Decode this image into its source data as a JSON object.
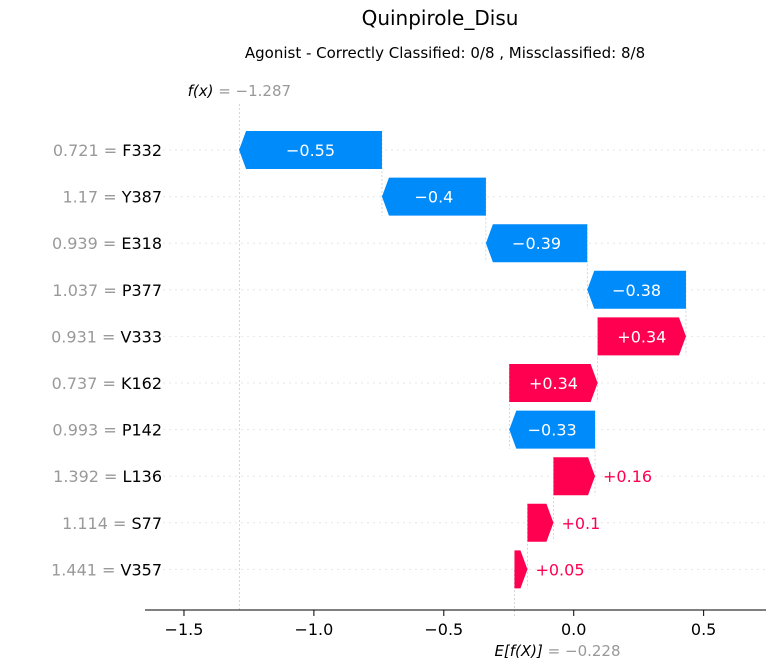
{
  "chart_data": {
    "type": "waterfall",
    "title": "Quinpirole_Disu",
    "subtitle": "Agonist - Correctly Classified: 0/8 , Missclassified: 8/8",
    "fx": {
      "name": "f(x)",
      "eq": " = ",
      "value": "−1.287",
      "num": -1.287
    },
    "base": {
      "name": "E[f(X)]",
      "eq": " = ",
      "value": "−0.228",
      "num": -0.228
    },
    "xlim": [
      -1.65,
      0.74
    ],
    "xticks": [
      {
        "v": -1.5,
        "label": "−1.5"
      },
      {
        "v": -1.0,
        "label": "−1.0"
      },
      {
        "v": -0.5,
        "label": "−0.5"
      },
      {
        "v": 0.0,
        "label": "0.0"
      },
      {
        "v": 0.5,
        "label": "0.5"
      }
    ],
    "colors": {
      "positive": "#ff0051",
      "negative": "#008bfb",
      "muted": "#999999",
      "connector": "#bbbbbb"
    },
    "features": [
      {
        "value": "0.721",
        "name": "F332",
        "shap": -0.55,
        "label": "−0.55"
      },
      {
        "value": "1.17",
        "name": "Y387",
        "shap": -0.4,
        "label": "−0.4"
      },
      {
        "value": "0.939",
        "name": "E318",
        "shap": -0.39,
        "label": "−0.39"
      },
      {
        "value": "1.037",
        "name": "P377",
        "shap": -0.38,
        "label": "−0.38"
      },
      {
        "value": "0.931",
        "name": "V333",
        "shap": 0.34,
        "label": "+0.34"
      },
      {
        "value": "0.737",
        "name": "K162",
        "shap": 0.34,
        "label": "+0.34"
      },
      {
        "value": "0.993",
        "name": "P142",
        "shap": -0.33,
        "label": "−0.33"
      },
      {
        "value": "1.392",
        "name": "L136",
        "shap": 0.16,
        "label": "+0.16"
      },
      {
        "value": "1.114",
        "name": "S77",
        "shap": 0.1,
        "label": "+0.1"
      },
      {
        "value": "1.441",
        "name": "V357",
        "shap": 0.05,
        "label": "+0.05"
      }
    ]
  }
}
